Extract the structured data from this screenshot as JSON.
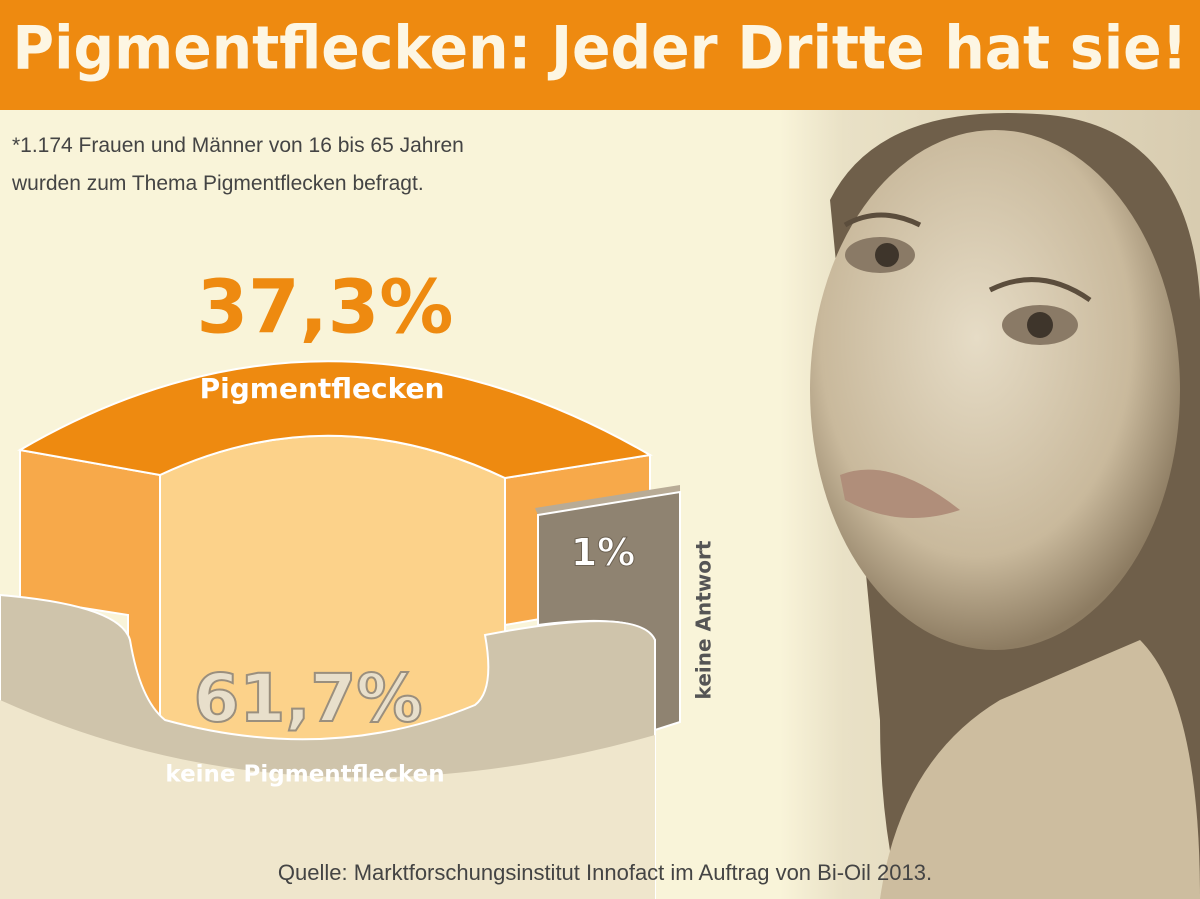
{
  "chart_data": {
    "type": "infographic",
    "title": "Pigmentflecken: Jeder Dritte hat sie!",
    "note": [
      "*1.174 Frauen und Männer von 16 bis 65 Jahren",
      "wurden zum Thema Pigmentflecken befragt."
    ],
    "categories": [
      "Pigmentflecken",
      "keine Pigmentflecken",
      "keine Antwort"
    ],
    "values": [
      37.3,
      61.7,
      1
    ],
    "value_labels": [
      "37,3%",
      "61,7%",
      "1%"
    ],
    "colors": [
      "#ee8a10",
      "#cfc4ab",
      "#8f8371"
    ],
    "source": "Quelle: Marktforschungsinstitut Innofact im Auftrag von Bi-Oil 2013."
  }
}
